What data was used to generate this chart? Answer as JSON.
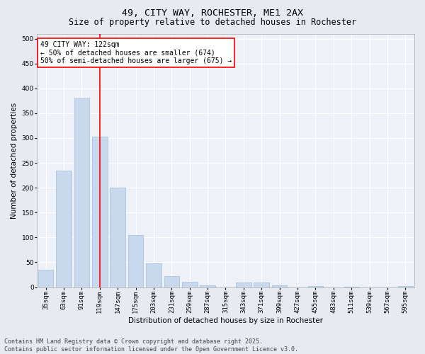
{
  "title_line1": "49, CITY WAY, ROCHESTER, ME1 2AX",
  "title_line2": "Size of property relative to detached houses in Rochester",
  "xlabel": "Distribution of detached houses by size in Rochester",
  "ylabel": "Number of detached properties",
  "categories": [
    "35sqm",
    "63sqm",
    "91sqm",
    "119sqm",
    "147sqm",
    "175sqm",
    "203sqm",
    "231sqm",
    "259sqm",
    "287sqm",
    "315sqm",
    "343sqm",
    "371sqm",
    "399sqm",
    "427sqm",
    "455sqm",
    "483sqm",
    "511sqm",
    "539sqm",
    "567sqm",
    "595sqm"
  ],
  "values": [
    35,
    235,
    380,
    303,
    200,
    105,
    48,
    22,
    11,
    4,
    0,
    10,
    9,
    3,
    0,
    2,
    0,
    1,
    0,
    0,
    2
  ],
  "bar_color": "#c9d9ed",
  "bar_edge_color": "#a8c4de",
  "vline_index": 3,
  "vline_color": "red",
  "annotation_text": "49 CITY WAY: 122sqm\n← 50% of detached houses are smaller (674)\n50% of semi-detached houses are larger (675) →",
  "annotation_box_color": "white",
  "annotation_box_edge_color": "red",
  "ylim": [
    0,
    510
  ],
  "yticks": [
    0,
    50,
    100,
    150,
    200,
    250,
    300,
    350,
    400,
    450,
    500
  ],
  "background_color": "#e8eaf2",
  "plot_bg_color": "#eef1f7",
  "footer_text": "Contains HM Land Registry data © Crown copyright and database right 2025.\nContains public sector information licensed under the Open Government Licence v3.0.",
  "title_fontsize": 9.5,
  "subtitle_fontsize": 8.5,
  "axis_label_fontsize": 7.5,
  "tick_fontsize": 6.5,
  "annotation_fontsize": 7,
  "footer_fontsize": 6
}
